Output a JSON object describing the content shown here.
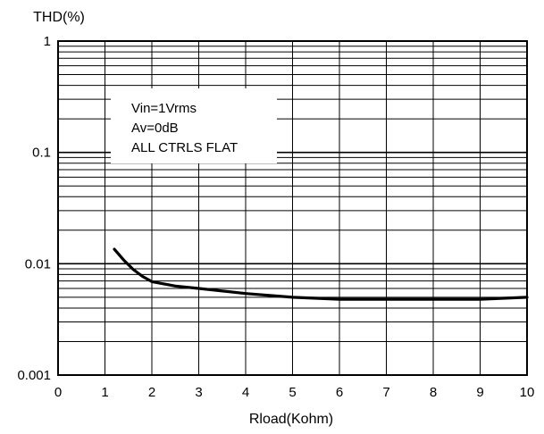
{
  "chart_data": {
    "type": "line",
    "xlabel": "Rload(Kohm)",
    "ylabel": "THD(%)",
    "xlim": [
      0,
      10
    ],
    "ylim": [
      0.001,
      1
    ],
    "y_scale": "log",
    "grid": true,
    "x_ticks": [
      "0",
      "1",
      "2",
      "3",
      "4",
      "5",
      "6",
      "7",
      "8",
      "9",
      "10"
    ],
    "y_ticks": [
      {
        "value": 1,
        "label": "1"
      },
      {
        "value": 0.1,
        "label": "0.1"
      },
      {
        "value": 0.01,
        "label": "0.01"
      },
      {
        "value": 0.001,
        "label": "0.001"
      }
    ],
    "annotation": [
      "Vin=1Vrms",
      "Av=0dB",
      "ALL CTRLS FLAT"
    ],
    "series": [
      {
        "x": [
          1.2,
          1.4,
          1.6,
          1.8,
          2.0,
          2.5,
          3.0,
          4.0,
          5.0,
          6.0,
          7.0,
          8.0,
          9.0,
          10.0
        ],
        "y": [
          0.0135,
          0.0108,
          0.0089,
          0.0077,
          0.0069,
          0.0063,
          0.006,
          0.0054,
          0.005,
          0.0048,
          0.0048,
          0.0048,
          0.0048,
          0.005
        ]
      }
    ]
  }
}
